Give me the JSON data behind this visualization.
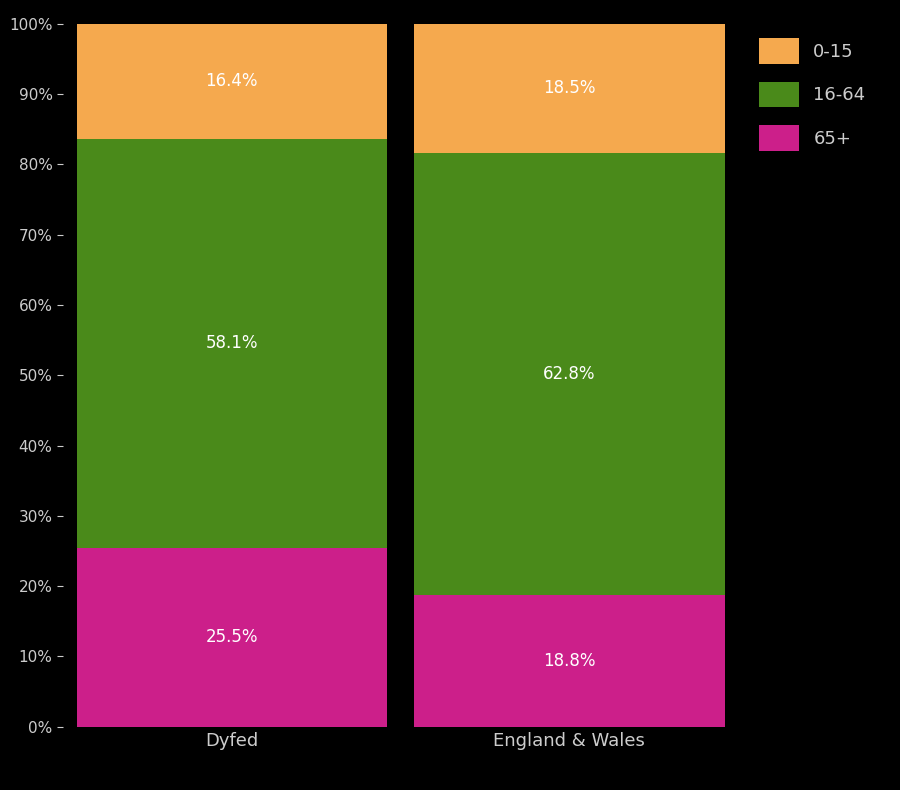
{
  "categories": [
    "Dyfed",
    "England & Wales"
  ],
  "segments": {
    "65+": [
      25.5,
      18.8
    ],
    "16-64": [
      58.1,
      62.8
    ],
    "0-15": [
      16.4,
      18.5
    ]
  },
  "colors": {
    "65+": "#cc1f8a",
    "16-64": "#4a8a1a",
    "0-15": "#f5a94e"
  },
  "background_color": "#000000",
  "text_color": "#cccccc",
  "bar_width": 0.92,
  "ylim": [
    0,
    100
  ],
  "yticks": [
    0,
    10,
    20,
    30,
    40,
    50,
    60,
    70,
    80,
    90,
    100
  ],
  "ytick_labels": [
    "0%",
    "10%",
    "20%",
    "30%",
    "40%",
    "50%",
    "60%",
    "70%",
    "80%",
    "90%",
    "100%"
  ],
  "figsize": [
    9.0,
    7.9
  ],
  "dpi": 100
}
